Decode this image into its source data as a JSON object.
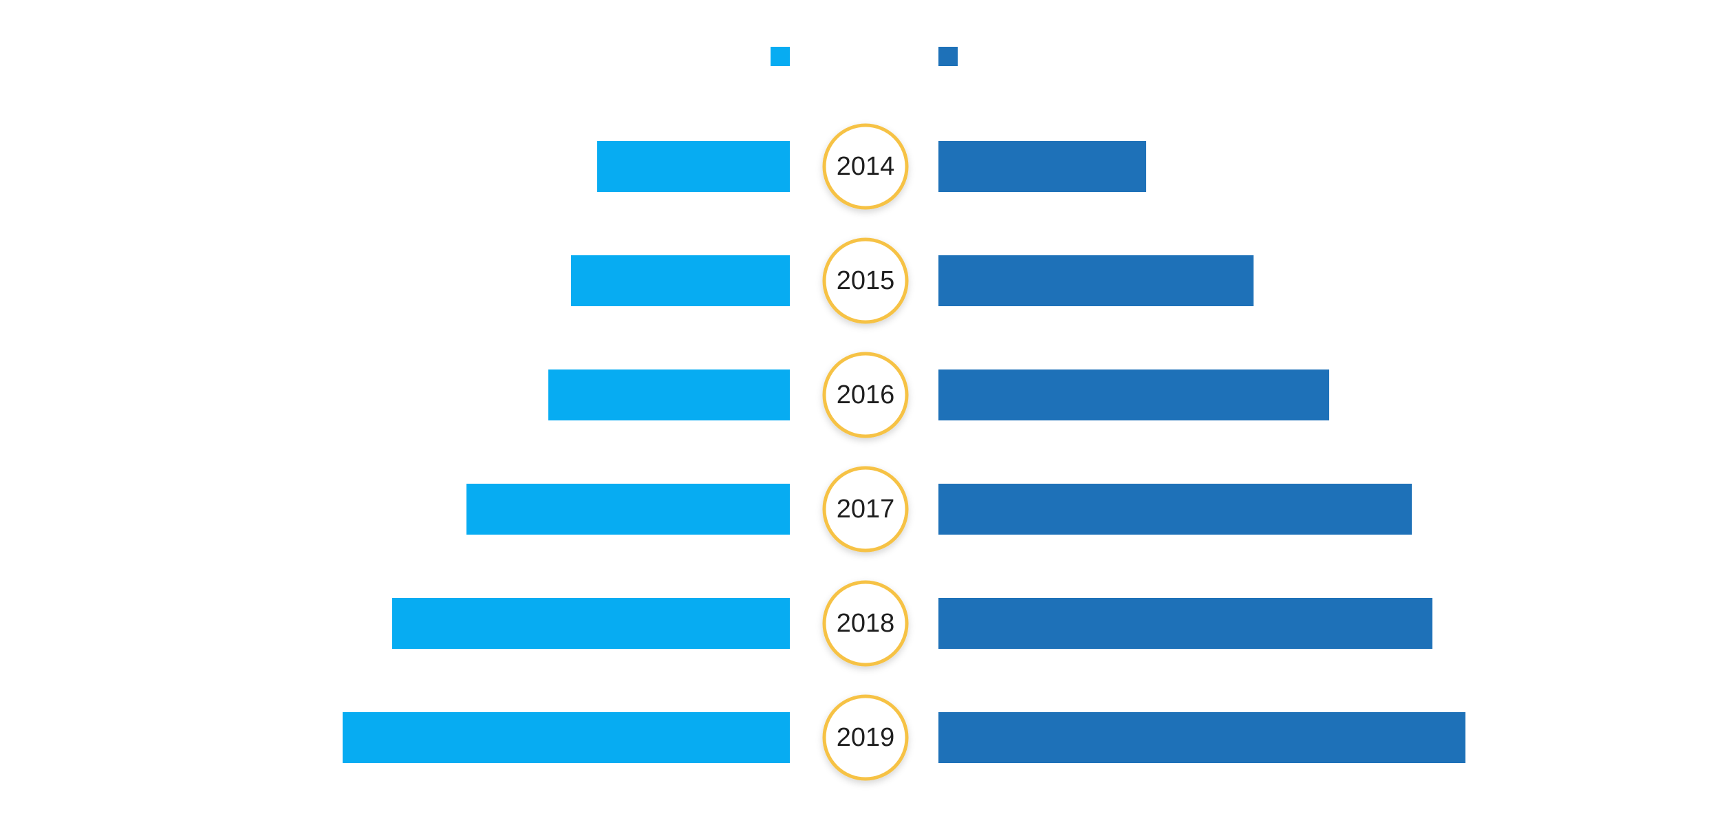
{
  "chart_data": {
    "type": "bar",
    "orientation": "horizontal-butterfly",
    "categories": [
      "2014",
      "2015",
      "2016",
      "2017",
      "2018",
      "2019"
    ],
    "series": [
      {
        "side": "left",
        "color": "#07ACF2",
        "values": [
          280,
          318,
          351,
          470,
          578,
          650
        ]
      },
      {
        "side": "right",
        "color": "#1E71B8",
        "values": [
          302,
          458,
          568,
          688,
          718,
          766
        ]
      }
    ],
    "legend": {
      "position": "top-center",
      "labels_visible": false
    },
    "category_badge_color": "#F6C244",
    "grid": false
  }
}
